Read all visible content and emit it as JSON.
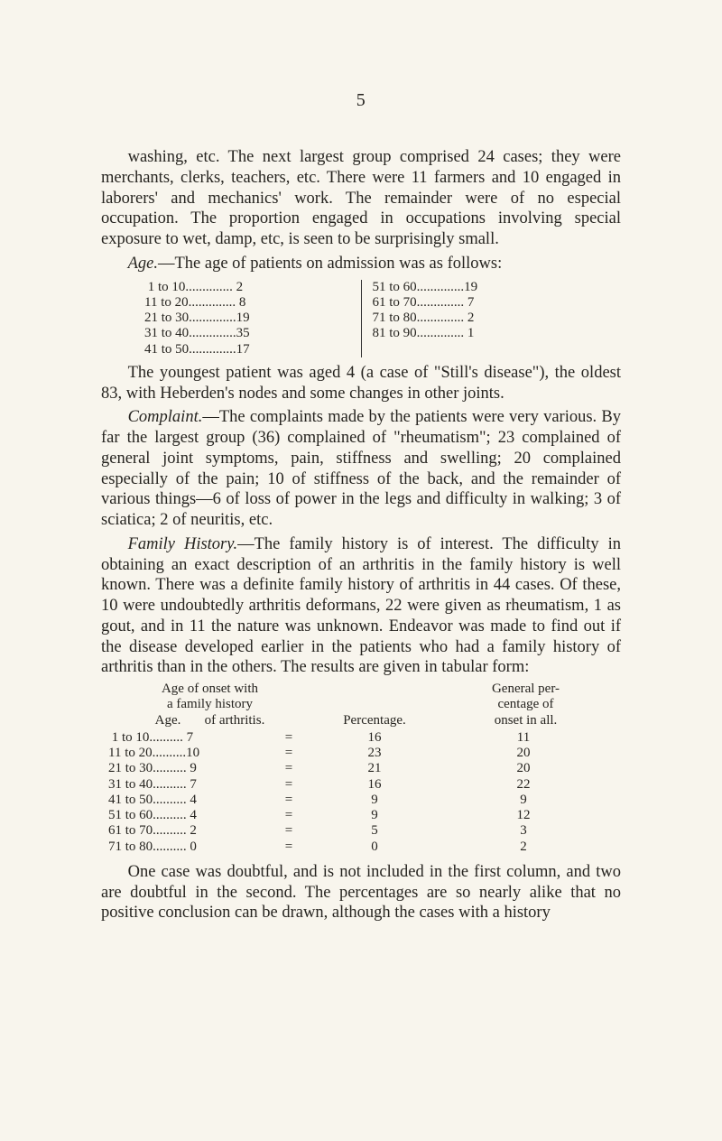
{
  "page_number": "5",
  "para1": "washing, etc. The next largest group comprised 24 cases; they were merchants, clerks, teachers, etc. There were 11 farmers and 10 engaged in laborers' and mechanics' work. The remainder were of no especial occupation. The proportion engaged in occupations involving special exposure to wet, damp, etc, is seen to be surprisingly small.",
  "para2_label": "Age.",
  "para2_text": "—The age of patients on admission was as follows:",
  "age_table": {
    "left": [
      {
        "range": " 1 to 10",
        "count": " 2"
      },
      {
        "range": "11 to 20",
        "count": " 8"
      },
      {
        "range": "21 to 30",
        "count": "19"
      },
      {
        "range": "31 to 40",
        "count": "35"
      },
      {
        "range": "41 to 50",
        "count": "17"
      }
    ],
    "right": [
      {
        "range": "51 to 60",
        "count": "19"
      },
      {
        "range": "61 to 70",
        "count": " 7"
      },
      {
        "range": "71 to 80",
        "count": " 2"
      },
      {
        "range": "81 to 90",
        "count": " 1"
      }
    ]
  },
  "para3": "The youngest patient was aged 4 (a case of \"Still's disease\"), the oldest 83, with Heberden's nodes and some changes in other joints.",
  "para4_label": "Complaint.",
  "para4_text": "—The complaints made by the patients were very various. By far the largest group (36) complained of \"rheumatism\"; 23 complained of general joint symptoms, pain, stiffness and swelling; 20 complained especially of the pain; 10 of stiffness of the back, and the remainder of various things—6 of loss of power in the legs and difficulty in walking; 3 of sciatica; 2 of neuritis, etc.",
  "para5_label": "Family History.",
  "para5_text": "—The family history is of interest. The difficulty in obtaining an exact description of an arthritis in the family history is well known. There was a definite family history of arthritis in 44 cases. Of these, 10 were undoubtedly arthritis deformans, 22 were given as rheumatism, 1 as gout, and in 11 the nature was unknown. Endeavor was made to find out if the disease developed earlier in the patients who had a family history of arthritis than in the others. The results are given in tabular form:",
  "percent_table": {
    "head_left_line1": "Age of onset with",
    "head_left_line2": "a family history",
    "head_left_line3": "Age.       of arthritis.",
    "head_mid": "Percentage.",
    "head_right_line1": "General per-",
    "head_right_line2": "centage of",
    "head_right_line3": "onset in all.",
    "rows": [
      {
        "range": " 1 to 10.......... 7",
        "pct": "16",
        "gen": "11"
      },
      {
        "range": "11 to 20..........10",
        "pct": "23",
        "gen": "20"
      },
      {
        "range": "21 to 30.......... 9",
        "pct": "21",
        "gen": "20"
      },
      {
        "range": "31 to 40.......... 7",
        "pct": "16",
        "gen": "22"
      },
      {
        "range": "41 to 50.......... 4",
        "pct": " 9",
        "gen": " 9"
      },
      {
        "range": "51 to 60.......... 4",
        "pct": " 9",
        "gen": "12"
      },
      {
        "range": "61 to 70.......... 2",
        "pct": " 5",
        "gen": " 3"
      },
      {
        "range": "71 to 80.......... 0",
        "pct": " 0",
        "gen": " 2"
      }
    ]
  },
  "para6": "One case was doubtful, and is not included in the first column, and two are doubtful in the second. The percentages are so nearly alike that no positive conclusion can be drawn, although the cases with a history"
}
